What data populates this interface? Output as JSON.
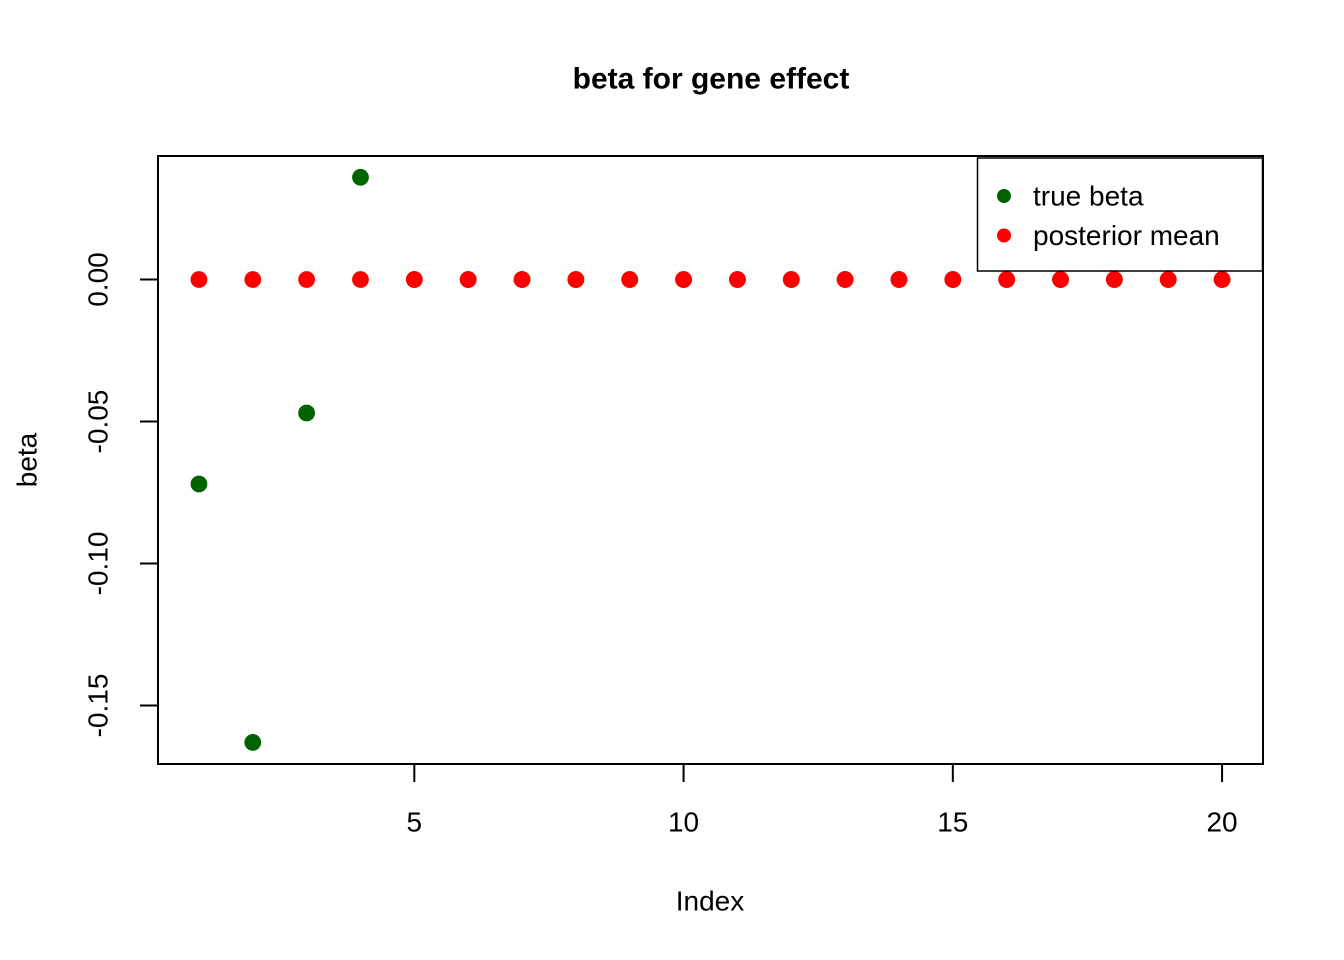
{
  "chart_data": {
    "type": "scatter",
    "title": "beta for gene effect",
    "xlabel": "Index",
    "ylabel": "beta",
    "x": [
      1,
      2,
      3,
      4,
      5,
      6,
      7,
      8,
      9,
      10,
      11,
      12,
      13,
      14,
      15,
      16,
      17,
      18,
      19,
      20
    ],
    "series": [
      {
        "name": "true beta",
        "color": "#006400",
        "values": [
          -0.072,
          -0.163,
          -0.047,
          0.036,
          0,
          0,
          0,
          0,
          0,
          0,
          0,
          0,
          0,
          0,
          0,
          0,
          0,
          0,
          0,
          0
        ]
      },
      {
        "name": "posterior mean",
        "color": "#FF0000",
        "values": [
          0,
          0,
          0,
          0,
          0,
          0,
          0,
          0,
          0,
          0,
          0,
          0,
          0,
          0,
          0,
          0,
          0,
          0,
          0,
          0
        ]
      }
    ],
    "xticks": [
      5,
      10,
      15,
      20
    ],
    "xtick_labels": [
      "5",
      "10",
      "15",
      "20"
    ],
    "yticks": [
      0.0,
      -0.05,
      -0.1,
      -0.15
    ],
    "ytick_labels": [
      "0.00",
      "-0.05",
      "-0.10",
      "-0.15"
    ],
    "xlim": [
      0.24,
      20.76
    ],
    "ylim": [
      -0.1706,
      0.0435
    ],
    "grid": false,
    "background": "#ffffff",
    "axis_color": "#000000",
    "legend": {
      "position": "top-right",
      "entries": [
        {
          "label": "true beta",
          "color": "#006400"
        },
        {
          "label": "posterior mean",
          "color": "#FF0000"
        }
      ]
    }
  }
}
